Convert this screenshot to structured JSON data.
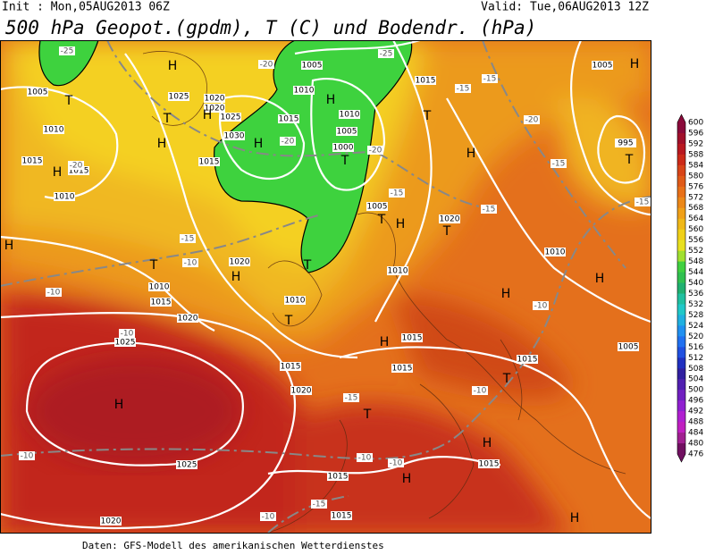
{
  "header": {
    "init": "Init : Mon,05AUG2013 06Z",
    "valid": "Valid: Tue,06AUG2013 12Z",
    "title": "500 hPa Geopot.(gpdm), T (C) und Bodendr. (hPa)"
  },
  "map": {
    "isobar_labels": [
      "1005",
      "1025",
      "1010",
      "1015",
      "1015",
      "1010",
      "1020",
      "1020",
      "1025",
      "1015",
      "1005",
      "1010",
      "1010",
      "1005",
      "1000",
      "1030",
      "1015",
      "1015",
      "1005",
      "995",
      "1005",
      "1020",
      "1010",
      "1010",
      "1020",
      "1010",
      "1015",
      "1010",
      "1020",
      "1025",
      "1015",
      "1015",
      "1015",
      "1015",
      "1005",
      "1020",
      "1025",
      "1015",
      "1015",
      "1015",
      "1020"
    ],
    "temperature_labels": [
      "-25",
      "-20",
      "-25",
      "-15",
      "-15",
      "-20",
      "-15",
      "-20",
      "-20",
      "-20",
      "-15",
      "-15",
      "-15",
      "-10",
      "-15",
      "-10",
      "-10",
      "-10",
      "-15",
      "-10",
      "-10",
      "-10",
      "-10",
      "-10",
      "-15"
    ],
    "pressure_centers": [
      "H",
      "T",
      "H",
      "H",
      "T",
      "H",
      "H",
      "H",
      "T",
      "H",
      "T",
      "T",
      "H",
      "T",
      "H",
      "T",
      "H",
      "T",
      "H",
      "T",
      "H",
      "H",
      "T",
      "H",
      "T",
      "T",
      "H",
      "H",
      "H",
      "H"
    ]
  },
  "colorbar": {
    "labels": [
      "600",
      "596",
      "592",
      "588",
      "584",
      "580",
      "576",
      "572",
      "568",
      "564",
      "560",
      "556",
      "552",
      "548",
      "544",
      "540",
      "536",
      "532",
      "528",
      "524",
      "520",
      "516",
      "512",
      "508",
      "504",
      "500",
      "496",
      "492",
      "488",
      "484",
      "480",
      "476"
    ],
    "colors": [
      "#8a0a3a",
      "#a0102a",
      "#b81820",
      "#cc2a18",
      "#d84418",
      "#e05a18",
      "#e87018",
      "#ec8818",
      "#f0a018",
      "#f0b818",
      "#f0d018",
      "#e8e020",
      "#a0e030",
      "#40d040",
      "#30c050",
      "#20b070",
      "#20c0a0",
      "#20c8c8",
      "#20b0e0",
      "#2090f0",
      "#2070f0",
      "#2050e0",
      "#2030c0",
      "#3020a0",
      "#5020b0",
      "#7020c0",
      "#9020d0",
      "#b020d0",
      "#c020c0",
      "#a02090",
      "#701060"
    ]
  },
  "footer": "Daten: GFS-Modell des amerikanischen Wetterdienstes"
}
